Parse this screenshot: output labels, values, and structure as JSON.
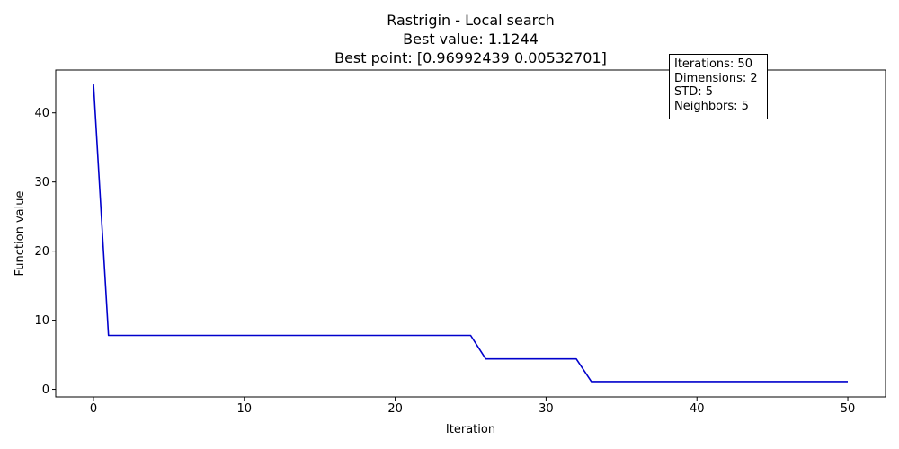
{
  "chart_data": {
    "type": "line",
    "title_lines": [
      "Rastrigin - Local search",
      "Best value: 1.1244",
      "Best point: [0.96992439 0.00532701]"
    ],
    "xlabel": "Iteration",
    "ylabel": "Function value",
    "xlim": [
      -2.5,
      52.5
    ],
    "ylim": [
      -1.1,
      46.2
    ],
    "xticks": [
      0,
      10,
      20,
      30,
      40,
      50
    ],
    "yticks": [
      0,
      10,
      20,
      30,
      40
    ],
    "grid": false,
    "series": [
      {
        "color": "#0000cc",
        "x": [
          0,
          1,
          25,
          26,
          32,
          33,
          50
        ],
        "y": [
          44.2,
          7.8,
          7.8,
          4.4,
          4.4,
          1.1244,
          1.1244
        ]
      }
    ],
    "annotation": {
      "placement": "top-right",
      "lines": [
        "Iterations: 50",
        "Dimensions: 2",
        "STD: 5",
        "Neighbors: 5"
      ]
    }
  }
}
